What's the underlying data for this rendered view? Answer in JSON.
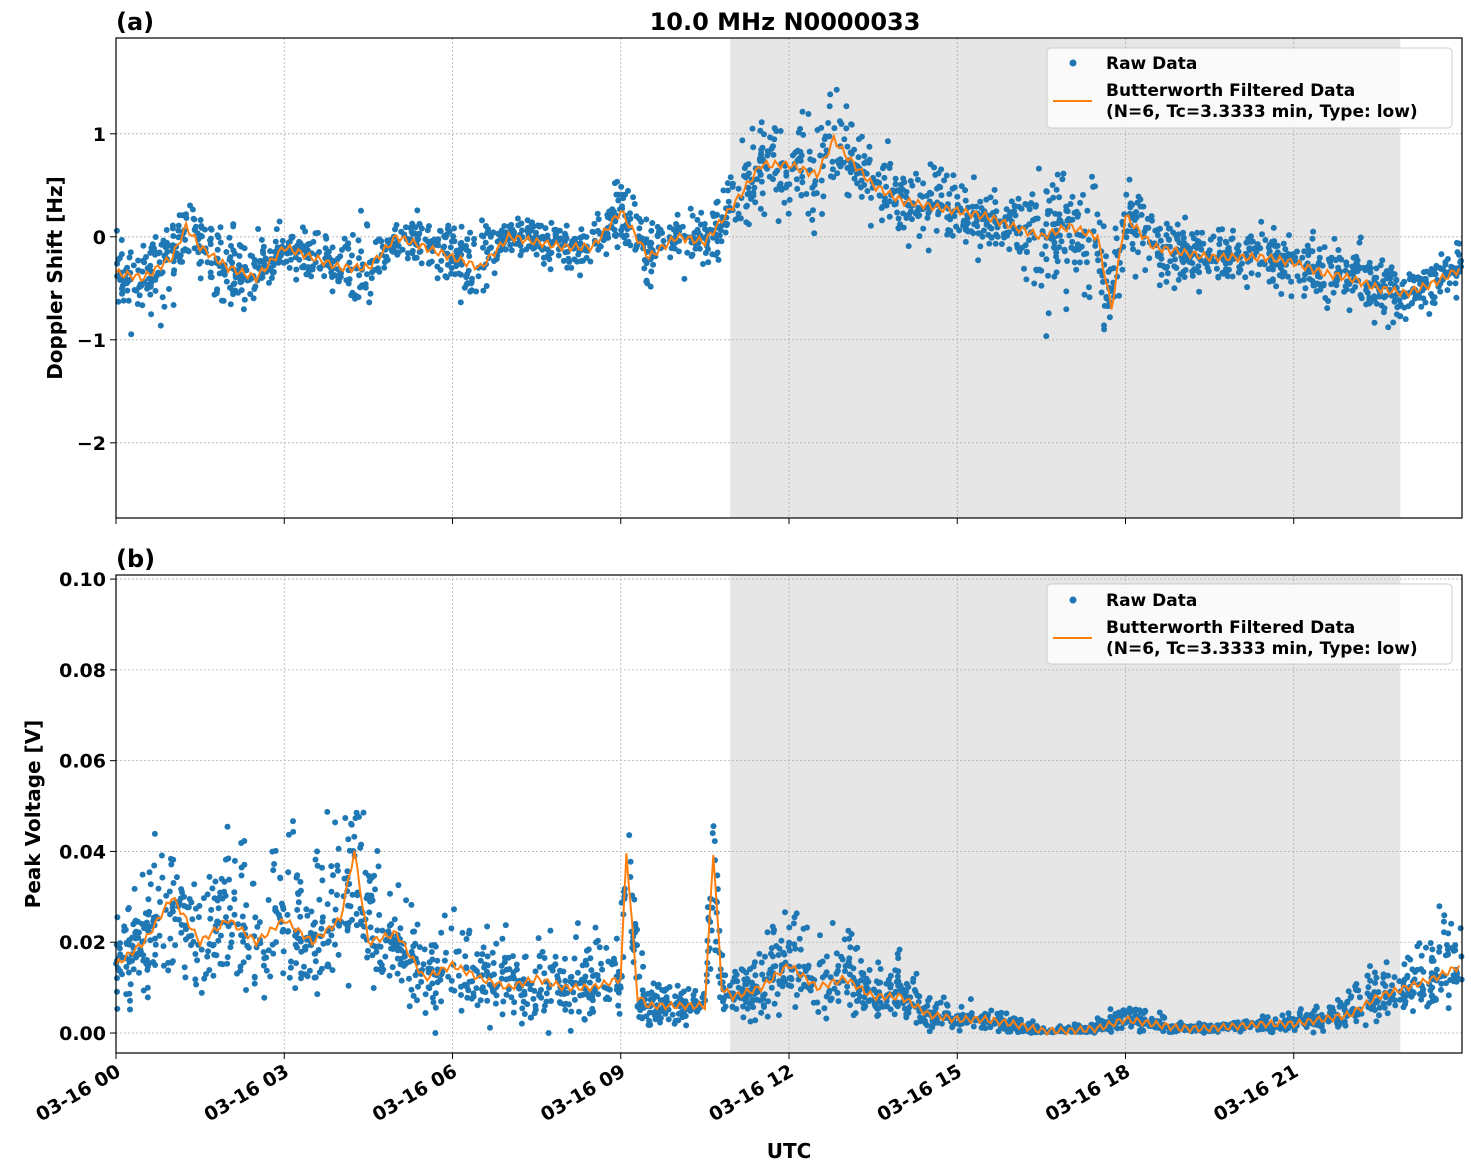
{
  "chart_data": [
    {
      "type": "scatter+line",
      "panel_label": "(a)",
      "title": "10.0 MHz N0000033",
      "xlabel": "",
      "ylabel": "Doppler Shift [Hz]",
      "xlim_hours": [
        0,
        24
      ],
      "ylim": [
        -2.73,
        1.93
      ],
      "yticks": [
        1,
        0,
        -1,
        -2
      ],
      "ytick_labels": [
        "1",
        "0",
        "−1",
        "−2"
      ],
      "grid": true,
      "shaded_region_hours": [
        10.95,
        22.9
      ],
      "legend": {
        "placement": "top-right",
        "entries": [
          "Raw Data",
          "Butterworth Filtered Data",
          "(N=6, Tc=3.3333 min, Type: low)"
        ]
      },
      "series": [
        {
          "name": "Butterworth Filtered Data",
          "color": "#ff7f0e",
          "x_hours": [
            0,
            0.5,
            1,
            1.25,
            1.5,
            2,
            2.5,
            3,
            3.5,
            4,
            4.5,
            5,
            5.5,
            6,
            6.5,
            7,
            7.5,
            8,
            8.5,
            9,
            9.5,
            10,
            10.5,
            11,
            11.5,
            12,
            12.5,
            12.8,
            13,
            13.5,
            14,
            14.5,
            15,
            15.5,
            16,
            16.5,
            17,
            17.5,
            17.75,
            18,
            18.5,
            19,
            19.5,
            20,
            20.5,
            21,
            21.5,
            22,
            22.5,
            23,
            23.5,
            24
          ],
          "y": [
            -0.35,
            -0.4,
            -0.2,
            0.1,
            -0.1,
            -0.3,
            -0.4,
            -0.1,
            -0.2,
            -0.3,
            -0.3,
            0.0,
            -0.1,
            -0.2,
            -0.3,
            0.0,
            -0.05,
            -0.1,
            -0.1,
            0.25,
            -0.2,
            0.0,
            -0.05,
            0.3,
            0.7,
            0.7,
            0.6,
            0.95,
            0.8,
            0.5,
            0.35,
            0.3,
            0.25,
            0.2,
            0.1,
            0.0,
            0.1,
            0.0,
            -0.7,
            0.2,
            -0.1,
            -0.15,
            -0.2,
            -0.2,
            -0.2,
            -0.25,
            -0.35,
            -0.4,
            -0.5,
            -0.55,
            -0.45,
            -0.3
          ],
          "raw_spread": [
            0.3,
            0.35,
            0.35,
            0.35,
            0.35,
            0.4,
            0.3,
            0.25,
            0.3,
            0.35,
            0.35,
            0.25,
            0.25,
            0.3,
            0.4,
            0.25,
            0.2,
            0.2,
            0.25,
            0.3,
            0.3,
            0.25,
            0.3,
            0.35,
            0.45,
            0.45,
            0.45,
            0.5,
            0.4,
            0.35,
            0.3,
            0.3,
            0.3,
            0.3,
            0.3,
            0.6,
            0.55,
            0.5,
            0.5,
            0.45,
            0.3,
            0.3,
            0.25,
            0.25,
            0.25,
            0.25,
            0.3,
            0.3,
            0.3,
            0.25,
            0.25,
            0.25
          ]
        },
        {
          "name": "Raw Data",
          "color": "#1f77b4"
        }
      ]
    },
    {
      "type": "scatter+line",
      "panel_label": "(b)",
      "xlabel": "UTC",
      "ylabel": "Peak Voltage [V]",
      "xlim_hours": [
        0,
        24
      ],
      "ylim": [
        -0.0044,
        0.1009
      ],
      "yticks": [
        0.0,
        0.02,
        0.04,
        0.06,
        0.08,
        0.1
      ],
      "ytick_labels": [
        "0.00",
        "0.02",
        "0.04",
        "0.06",
        "0.08",
        "0.10"
      ],
      "xticks_hours": [
        0,
        3,
        6,
        9,
        12,
        15,
        18,
        21
      ],
      "xtick_labels": [
        "03-16 00",
        "03-16 03",
        "03-16 06",
        "03-16 09",
        "03-16 12",
        "03-16 15",
        "03-16 18",
        "03-16 21"
      ],
      "grid": true,
      "shaded_region_hours": [
        10.95,
        22.9
      ],
      "legend": {
        "placement": "top-right",
        "entries": [
          "Raw Data",
          "Butterworth Filtered Data",
          "(N=6, Tc=3.3333 min, Type: low)"
        ]
      },
      "series": [
        {
          "name": "Butterworth Filtered Data",
          "color": "#ff7f0e",
          "x_hours": [
            0,
            0.5,
            1,
            1.5,
            2,
            2.5,
            3,
            3.5,
            4,
            4.25,
            4.5,
            5,
            5.5,
            6,
            6.5,
            7,
            7.5,
            8,
            8.5,
            9,
            9.1,
            9.3,
            9.5,
            10,
            10.5,
            10.65,
            10.8,
            11,
            11.5,
            12,
            12.5,
            13,
            13.5,
            14,
            14.5,
            15,
            15.5,
            16,
            16.5,
            17,
            17.5,
            18,
            18.5,
            19,
            19.5,
            20,
            20.5,
            21,
            21.5,
            22,
            22.5,
            23,
            23.5,
            24
          ],
          "y": [
            0.015,
            0.02,
            0.03,
            0.02,
            0.025,
            0.02,
            0.025,
            0.02,
            0.025,
            0.04,
            0.02,
            0.022,
            0.012,
            0.015,
            0.012,
            0.01,
            0.012,
            0.01,
            0.01,
            0.012,
            0.04,
            0.008,
            0.006,
            0.006,
            0.006,
            0.04,
            0.01,
            0.008,
            0.01,
            0.015,
            0.01,
            0.012,
            0.008,
            0.008,
            0.004,
            0.003,
            0.003,
            0.002,
            0.0005,
            0.0005,
            0.001,
            0.003,
            0.002,
            0.001,
            0.001,
            0.0015,
            0.002,
            0.002,
            0.003,
            0.004,
            0.008,
            0.01,
            0.012,
            0.015
          ],
          "raw_spread_up": [
            0.012,
            0.015,
            0.02,
            0.015,
            0.02,
            0.02,
            0.02,
            0.02,
            0.025,
            0.045,
            0.02,
            0.015,
            0.01,
            0.012,
            0.01,
            0.01,
            0.01,
            0.008,
            0.01,
            0.015,
            0.01,
            0.015,
            0.004,
            0.004,
            0.004,
            0.02,
            0.008,
            0.006,
            0.01,
            0.01,
            0.01,
            0.012,
            0.006,
            0.008,
            0.004,
            0.003,
            0.003,
            0.002,
            0.0008,
            0.0008,
            0.002,
            0.004,
            0.004,
            0.001,
            0.001,
            0.001,
            0.002,
            0.003,
            0.004,
            0.006,
            0.008,
            0.008,
            0.012,
            0.02
          ],
          "raw_spread_down": [
            0.01,
            0.012,
            0.015,
            0.012,
            0.015,
            0.012,
            0.015,
            0.012,
            0.015,
            0.02,
            0.012,
            0.012,
            0.008,
            0.01,
            0.008,
            0.007,
            0.008,
            0.007,
            0.007,
            0.008,
            0.01,
            0.005,
            0.004,
            0.004,
            0.004,
            0.02,
            0.006,
            0.005,
            0.006,
            0.008,
            0.006,
            0.007,
            0.005,
            0.005,
            0.003,
            0.002,
            0.002,
            0.0015,
            0.0005,
            0.0005,
            0.001,
            0.002,
            0.0015,
            0.001,
            0.001,
            0.001,
            0.0015,
            0.0015,
            0.002,
            0.003,
            0.004,
            0.005,
            0.006,
            0.008
          ]
        },
        {
          "name": "Raw Data",
          "color": "#1f77b4"
        }
      ]
    }
  ],
  "colors": {
    "raw": "#1f77b4",
    "filtered": "#ff7f0e",
    "shade": "#e6e6e6",
    "grid": "#b0b0b0"
  }
}
